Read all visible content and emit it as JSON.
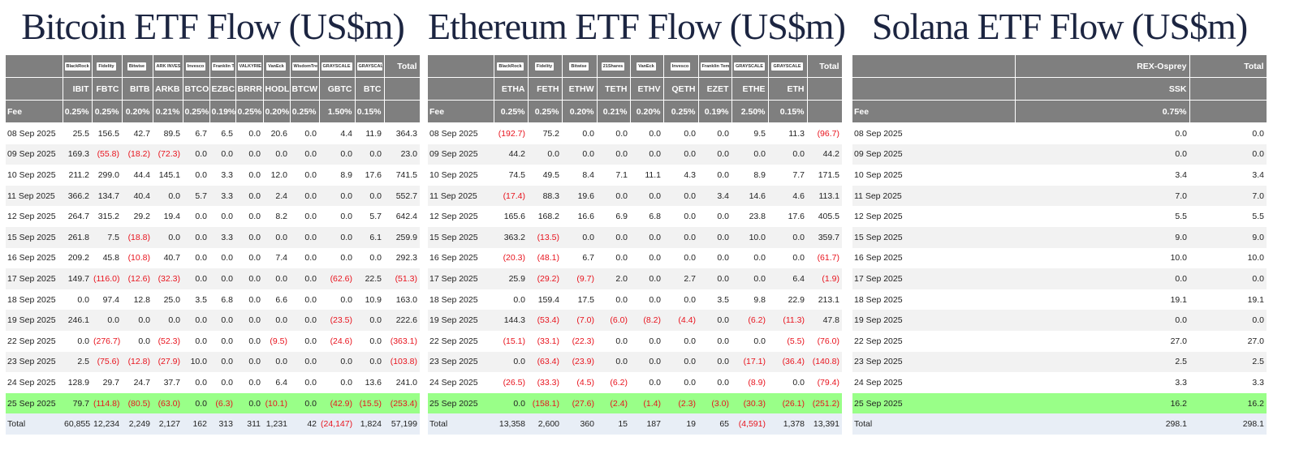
{
  "tables": [
    {
      "title": "Bitcoin ETF Flow (US$m)",
      "logos": [
        "BlackRock",
        "Fidelity",
        "Bitwise",
        "ARK INVEST",
        "Invesco",
        "Franklin Templeton",
        "VALKYRIE",
        "VanEck",
        "WisdomTree",
        "GRAYSCALE",
        "GRAYSCALE"
      ],
      "total_header": "Total",
      "tickers": [
        "IBIT",
        "FBTC",
        "BITB",
        "ARKB",
        "BTCO",
        "EZBC",
        "BRRR",
        "HODL",
        "BTCW",
        "GBTC",
        "BTC"
      ],
      "fee_label": "Fee",
      "fees": [
        "0.25%",
        "0.25%",
        "0.20%",
        "0.21%",
        "0.25%",
        "0.19%",
        "0.25%",
        "0.20%",
        "0.25%",
        "1.50%",
        "0.15%"
      ],
      "rows": [
        [
          "08 Sep 2025",
          "25.5",
          "156.5",
          "42.7",
          "89.5",
          "6.7",
          "6.5",
          "0.0",
          "20.6",
          "0.0",
          "4.4",
          "11.9",
          "364.3"
        ],
        [
          "09 Sep 2025",
          "169.3",
          "(55.8)",
          "(18.2)",
          "(72.3)",
          "0.0",
          "0.0",
          "0.0",
          "0.0",
          "0.0",
          "0.0",
          "0.0",
          "23.0"
        ],
        [
          "10 Sep 2025",
          "211.2",
          "299.0",
          "44.4",
          "145.1",
          "0.0",
          "3.3",
          "0.0",
          "12.0",
          "0.0",
          "8.9",
          "17.6",
          "741.5"
        ],
        [
          "11 Sep 2025",
          "366.2",
          "134.7",
          "40.4",
          "0.0",
          "5.7",
          "3.3",
          "0.0",
          "2.4",
          "0.0",
          "0.0",
          "0.0",
          "552.7"
        ],
        [
          "12 Sep 2025",
          "264.7",
          "315.2",
          "29.2",
          "19.4",
          "0.0",
          "0.0",
          "0.0",
          "8.2",
          "0.0",
          "0.0",
          "5.7",
          "642.4"
        ],
        [
          "15 Sep 2025",
          "261.8",
          "7.5",
          "(18.8)",
          "0.0",
          "0.0",
          "3.3",
          "0.0",
          "0.0",
          "0.0",
          "0.0",
          "6.1",
          "259.9"
        ],
        [
          "16 Sep 2025",
          "209.2",
          "45.8",
          "(10.8)",
          "40.7",
          "0.0",
          "0.0",
          "0.0",
          "7.4",
          "0.0",
          "0.0",
          "0.0",
          "292.3"
        ],
        [
          "17 Sep 2025",
          "149.7",
          "(116.0)",
          "(12.6)",
          "(32.3)",
          "0.0",
          "0.0",
          "0.0",
          "0.0",
          "0.0",
          "(62.6)",
          "22.5",
          "(51.3)"
        ],
        [
          "18 Sep 2025",
          "0.0",
          "97.4",
          "12.8",
          "25.0",
          "3.5",
          "6.8",
          "0.0",
          "6.6",
          "0.0",
          "0.0",
          "10.9",
          "163.0"
        ],
        [
          "19 Sep 2025",
          "246.1",
          "0.0",
          "0.0",
          "0.0",
          "0.0",
          "0.0",
          "0.0",
          "0.0",
          "0.0",
          "(23.5)",
          "0.0",
          "222.6"
        ],
        [
          "22 Sep 2025",
          "0.0",
          "(276.7)",
          "0.0",
          "(52.3)",
          "0.0",
          "0.0",
          "0.0",
          "(9.5)",
          "0.0",
          "(24.6)",
          "0.0",
          "(363.1)"
        ],
        [
          "23 Sep 2025",
          "2.5",
          "(75.6)",
          "(12.8)",
          "(27.9)",
          "10.0",
          "0.0",
          "0.0",
          "0.0",
          "0.0",
          "0.0",
          "0.0",
          "(103.8)"
        ],
        [
          "24 Sep 2025",
          "128.9",
          "29.7",
          "24.7",
          "37.7",
          "0.0",
          "0.0",
          "0.0",
          "6.4",
          "0.0",
          "0.0",
          "13.6",
          "241.0"
        ],
        [
          "25 Sep 2025",
          "79.7",
          "(114.8)",
          "(80.5)",
          "(63.0)",
          "0.0",
          "(6.3)",
          "0.0",
          "(10.1)",
          "0.0",
          "(42.9)",
          "(15.5)",
          "(253.4)"
        ]
      ],
      "total_row": [
        "Total",
        "60,855",
        "12,234",
        "2,249",
        "2,127",
        "162",
        "313",
        "311",
        "1,231",
        "42",
        "(24,147)",
        "1,824",
        "57,199"
      ]
    },
    {
      "title": "Ethereum ETF Flow (US$m)",
      "logos": [
        "BlackRock",
        "Fidelity",
        "Bitwise",
        "21Shares",
        "VanEck",
        "Invesco",
        "Franklin Templeton",
        "GRAYSCALE",
        "GRAYSCALE"
      ],
      "total_header": "Total",
      "tickers": [
        "ETHA",
        "FETH",
        "ETHW",
        "TETH",
        "ETHV",
        "QETH",
        "EZET",
        "ETHE",
        "ETH"
      ],
      "fee_label": "Fee",
      "fees": [
        "0.25%",
        "0.25%",
        "0.20%",
        "0.21%",
        "0.20%",
        "0.25%",
        "0.19%",
        "2.50%",
        "0.15%"
      ],
      "rows": [
        [
          "08 Sep 2025",
          "(192.7)",
          "75.2",
          "0.0",
          "0.0",
          "0.0",
          "0.0",
          "0.0",
          "9.5",
          "11.3",
          "(96.7)"
        ],
        [
          "09 Sep 2025",
          "44.2",
          "0.0",
          "0.0",
          "0.0",
          "0.0",
          "0.0",
          "0.0",
          "0.0",
          "0.0",
          "44.2"
        ],
        [
          "10 Sep 2025",
          "74.5",
          "49.5",
          "8.4",
          "7.1",
          "11.1",
          "4.3",
          "0.0",
          "8.9",
          "7.7",
          "171.5"
        ],
        [
          "11 Sep 2025",
          "(17.4)",
          "88.3",
          "19.6",
          "0.0",
          "0.0",
          "0.0",
          "3.4",
          "14.6",
          "4.6",
          "113.1"
        ],
        [
          "12 Sep 2025",
          "165.6",
          "168.2",
          "16.6",
          "6.9",
          "6.8",
          "0.0",
          "0.0",
          "23.8",
          "17.6",
          "405.5"
        ],
        [
          "15 Sep 2025",
          "363.2",
          "(13.5)",
          "0.0",
          "0.0",
          "0.0",
          "0.0",
          "0.0",
          "10.0",
          "0.0",
          "359.7"
        ],
        [
          "16 Sep 2025",
          "(20.3)",
          "(48.1)",
          "6.7",
          "0.0",
          "0.0",
          "0.0",
          "0.0",
          "0.0",
          "0.0",
          "(61.7)"
        ],
        [
          "17 Sep 2025",
          "25.9",
          "(29.2)",
          "(9.7)",
          "2.0",
          "0.0",
          "2.7",
          "0.0",
          "0.0",
          "6.4",
          "(1.9)"
        ],
        [
          "18 Sep 2025",
          "0.0",
          "159.4",
          "17.5",
          "0.0",
          "0.0",
          "0.0",
          "3.5",
          "9.8",
          "22.9",
          "213.1"
        ],
        [
          "19 Sep 2025",
          "144.3",
          "(53.4)",
          "(7.0)",
          "(6.0)",
          "(8.2)",
          "(4.4)",
          "0.0",
          "(6.2)",
          "(11.3)",
          "47.8"
        ],
        [
          "22 Sep 2025",
          "(15.1)",
          "(33.1)",
          "(22.3)",
          "0.0",
          "0.0",
          "0.0",
          "0.0",
          "0.0",
          "(5.5)",
          "(76.0)"
        ],
        [
          "23 Sep 2025",
          "0.0",
          "(63.4)",
          "(23.9)",
          "0.0",
          "0.0",
          "0.0",
          "0.0",
          "(17.1)",
          "(36.4)",
          "(140.8)"
        ],
        [
          "24 Sep 2025",
          "(26.5)",
          "(33.3)",
          "(4.5)",
          "(6.2)",
          "0.0",
          "0.0",
          "0.0",
          "(8.9)",
          "0.0",
          "(79.4)"
        ],
        [
          "25 Sep 2025",
          "0.0",
          "(158.1)",
          "(27.6)",
          "(2.4)",
          "(1.4)",
          "(2.3)",
          "(3.0)",
          "(30.3)",
          "(26.1)",
          "(251.2)"
        ]
      ],
      "total_row": [
        "Total",
        "13,358",
        "2,600",
        "360",
        "15",
        "187",
        "19",
        "65",
        "(4,591)",
        "1,378",
        "13,391"
      ]
    },
    {
      "title": "Solana ETF Flow (US$m)",
      "issuers": [
        "REX-Osprey"
      ],
      "total_header": "Total",
      "tickers": [
        "SSK"
      ],
      "fee_label": "Fee",
      "fees": [
        "0.75%"
      ],
      "rows": [
        [
          "08 Sep 2025",
          "0.0",
          "0.0"
        ],
        [
          "09 Sep 2025",
          "0.0",
          "0.0"
        ],
        [
          "10 Sep 2025",
          "3.4",
          "3.4"
        ],
        [
          "11 Sep 2025",
          "7.0",
          "7.0"
        ],
        [
          "12 Sep 2025",
          "5.5",
          "5.5"
        ],
        [
          "15 Sep 2025",
          "9.0",
          "9.0"
        ],
        [
          "16 Sep 2025",
          "10.0",
          "10.0"
        ],
        [
          "17 Sep 2025",
          "0.0",
          "0.0"
        ],
        [
          "18 Sep 2025",
          "19.1",
          "19.1"
        ],
        [
          "19 Sep 2025",
          "0.0",
          "0.0"
        ],
        [
          "22 Sep 2025",
          "27.0",
          "27.0"
        ],
        [
          "23 Sep 2025",
          "2.5",
          "2.5"
        ],
        [
          "24 Sep 2025",
          "3.3",
          "3.3"
        ],
        [
          "25 Sep 2025",
          "16.2",
          "16.2"
        ]
      ],
      "total_row": [
        "Total",
        "298.1",
        "298.1"
      ]
    }
  ]
}
